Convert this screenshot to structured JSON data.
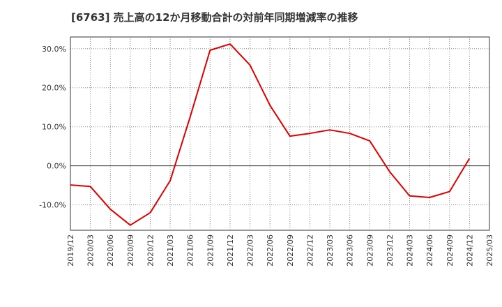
{
  "chart_data": {
    "type": "line",
    "title": "[6763]  売上高の12か月移動合計の対前年同期増減率の推移",
    "xlabel": "",
    "ylabel": "",
    "ylim": [
      -16.5,
      33
    ],
    "y_ticks": [
      30,
      20,
      10,
      0,
      -10
    ],
    "y_tick_labels": [
      "30.0%",
      "20.0%",
      "10.0%",
      "0.0%",
      "-10.0%"
    ],
    "x_tick_labels": [
      "2019/12",
      "2020/03",
      "2020/06",
      "2020/09",
      "2020/12",
      "2021/03",
      "2021/06",
      "2021/09",
      "2021/12",
      "2022/03",
      "2022/06",
      "2022/09",
      "2022/12",
      "2023/03",
      "2023/06",
      "2023/09",
      "2023/12",
      "2024/03",
      "2024/06",
      "2024/09",
      "2024/12",
      "2025/03"
    ],
    "grid": true,
    "line_color": "#e00000",
    "series": [
      {
        "name": "対前年同期増減率",
        "values": [
          -4.9,
          -5.3,
          -11.1,
          -15.2,
          -12.0,
          -3.8,
          12.5,
          29.6,
          31.2,
          25.8,
          15.5,
          7.6,
          8.3,
          9.2,
          8.3,
          6.4,
          -1.5,
          -7.7,
          -8.1,
          -6.6,
          1.9
        ]
      }
    ]
  }
}
